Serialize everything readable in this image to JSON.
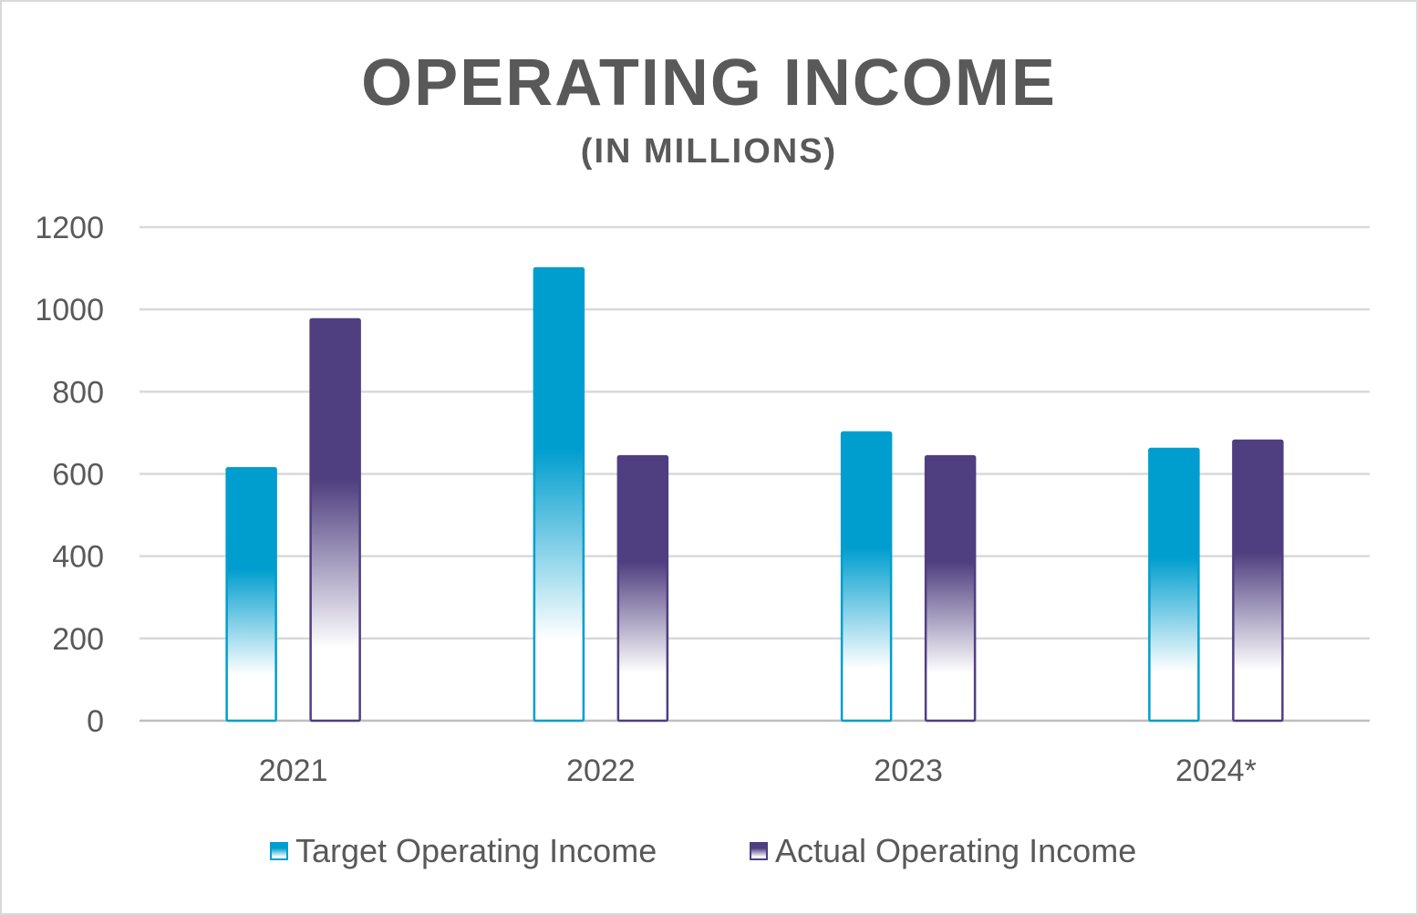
{
  "chart_data": {
    "type": "bar",
    "title": "OPERATING INCOME",
    "subtitle": "(IN MILLIONS)",
    "categories": [
      "2021",
      "2022",
      "2023",
      "2024*"
    ],
    "series": [
      {
        "name": "Target Operating Income",
        "color": "#009ECF",
        "values": [
          614,
          1100,
          701,
          661
        ]
      },
      {
        "name": "Actual Operating Income",
        "color": "#4F3F80",
        "values": [
          976,
          643,
          643,
          681
        ]
      }
    ],
    "ylim": [
      0,
      1200
    ],
    "yticks": [
      0,
      200,
      400,
      600,
      800,
      1000,
      1200
    ],
    "grid": true,
    "legend": "bottom",
    "xlabel": "",
    "ylabel": ""
  }
}
